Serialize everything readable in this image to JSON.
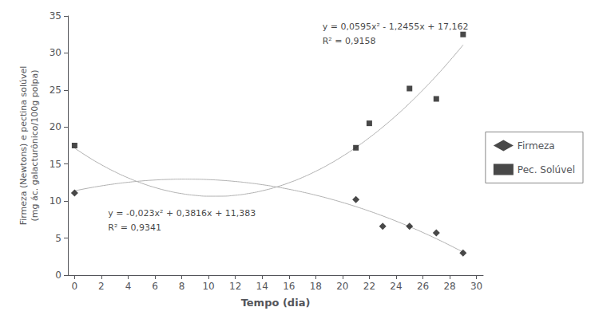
{
  "chart_data": {
    "type": "scatter",
    "xlabel": "Tempo (dia)",
    "ylabel": "Firmeza (Newtons) e pectina solúvel\n(mg ác. galacturônico/100g polpa)",
    "xlim": [
      -0.5,
      30.5
    ],
    "ylim": [
      0,
      35
    ],
    "xticks": [
      0,
      2,
      4,
      6,
      8,
      10,
      12,
      14,
      16,
      18,
      20,
      22,
      24,
      26,
      28,
      30
    ],
    "yticks": [
      0,
      5,
      10,
      15,
      20,
      25,
      30,
      35
    ],
    "grid": false,
    "legend": "right",
    "series": [
      {
        "type": "line",
        "color": "#b0b0b0",
        "line_style": "solid",
        "x": [
          0,
          1,
          2,
          3,
          4,
          5,
          6,
          7,
          8,
          9,
          10,
          11,
          12,
          13,
          14,
          15,
          16,
          17,
          18,
          19,
          20,
          21,
          22,
          23,
          24,
          25,
          26,
          27,
          28,
          29
        ],
        "values": [
          11.383,
          11.7416,
          12.0542,
          12.3208,
          12.5414,
          12.716,
          12.8446,
          12.9272,
          12.9638,
          12.9544,
          12.899,
          12.7976,
          12.6502,
          12.4568,
          12.2174,
          11.932,
          11.6006,
          11.2232,
          10.7998,
          10.3304,
          9.815,
          9.2536,
          8.6462,
          7.9928,
          7.2934,
          6.548,
          5.7566,
          4.9192,
          4.0358,
          3.1064
        ]
      },
      {
        "type": "line",
        "color": "#b0b0b0",
        "line_style": "solid",
        "x": [
          0,
          1,
          2,
          3,
          4,
          5,
          6,
          7,
          8,
          9,
          10,
          11,
          12,
          13,
          14,
          15,
          16,
          17,
          18,
          19,
          20,
          21,
          22,
          23,
          24,
          25,
          26,
          27,
          28,
          29
        ],
        "values": [
          17.162,
          15.976,
          14.909,
          13.961,
          13.132,
          12.422,
          11.831,
          11.359,
          11.006,
          10.772,
          10.657,
          10.661,
          10.784,
          11.026,
          11.387,
          11.867,
          12.466,
          13.184,
          14.021,
          14.977,
          16.052,
          17.246,
          18.559,
          19.991,
          21.542,
          23.212,
          25.001,
          26.909,
          28.936,
          31.082
        ]
      },
      {
        "name": "Firmeza",
        "type": "scatter",
        "color": "#1a1a1a",
        "marker": "diamond",
        "x": [
          0,
          21,
          23,
          25,
          27,
          29
        ],
        "values": [
          11.1,
          10.2,
          6.6,
          6.6,
          5.7,
          3.0
        ]
      },
      {
        "name": "Pec. Solúvel",
        "type": "scatter",
        "color": "#1a1a1a",
        "marker": "square",
        "x": [
          0,
          21,
          22,
          25,
          27,
          29
        ],
        "values": [
          17.5,
          17.2,
          20.5,
          25.2,
          23.8,
          32.5
        ]
      }
    ],
    "annotations": [
      {
        "text": "y = -0,023x² + 0,3816x + 11,383",
        "x": 2.5,
        "y": 7.8
      },
      {
        "text": "R² = 0,9341",
        "x": 2.5,
        "y": 5.8
      },
      {
        "text": "y = 0,0595x² - 1,2455x + 17,162",
        "x": 18.5,
        "y": 33.0
      },
      {
        "text": "R² = 0,9158",
        "x": 18.5,
        "y": 31.0
      }
    ]
  }
}
